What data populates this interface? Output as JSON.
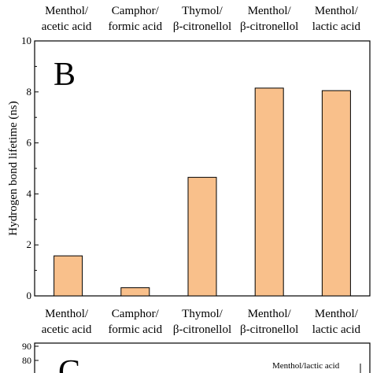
{
  "chart_data": [
    {
      "type": "bar",
      "panel_label": "B",
      "categories": [
        [
          "Menthol/",
          "acetic acid"
        ],
        [
          "Camphor/",
          "formic acid"
        ],
        [
          "Thymol/",
          "β-citronellol"
        ],
        [
          "Menthol/",
          "β-citronellol"
        ],
        [
          "Menthol/",
          "lactic acid"
        ]
      ],
      "values": [
        1.57,
        0.32,
        4.65,
        8.15,
        8.05
      ],
      "ylabel": "Hydrogen bond lifetime (ns)",
      "ylim": [
        0,
        10
      ],
      "yticks": [
        "0",
        "2",
        "4",
        "6",
        "8",
        "10"
      ],
      "bar_color": "#f9c08b",
      "bar_edge_color": "#000000",
      "grid": false
    },
    {
      "type": "line",
      "panel_label": "C",
      "yticks": [
        "80",
        "90"
      ],
      "annotations": [
        "Menthol/lactic acid"
      ]
    }
  ]
}
